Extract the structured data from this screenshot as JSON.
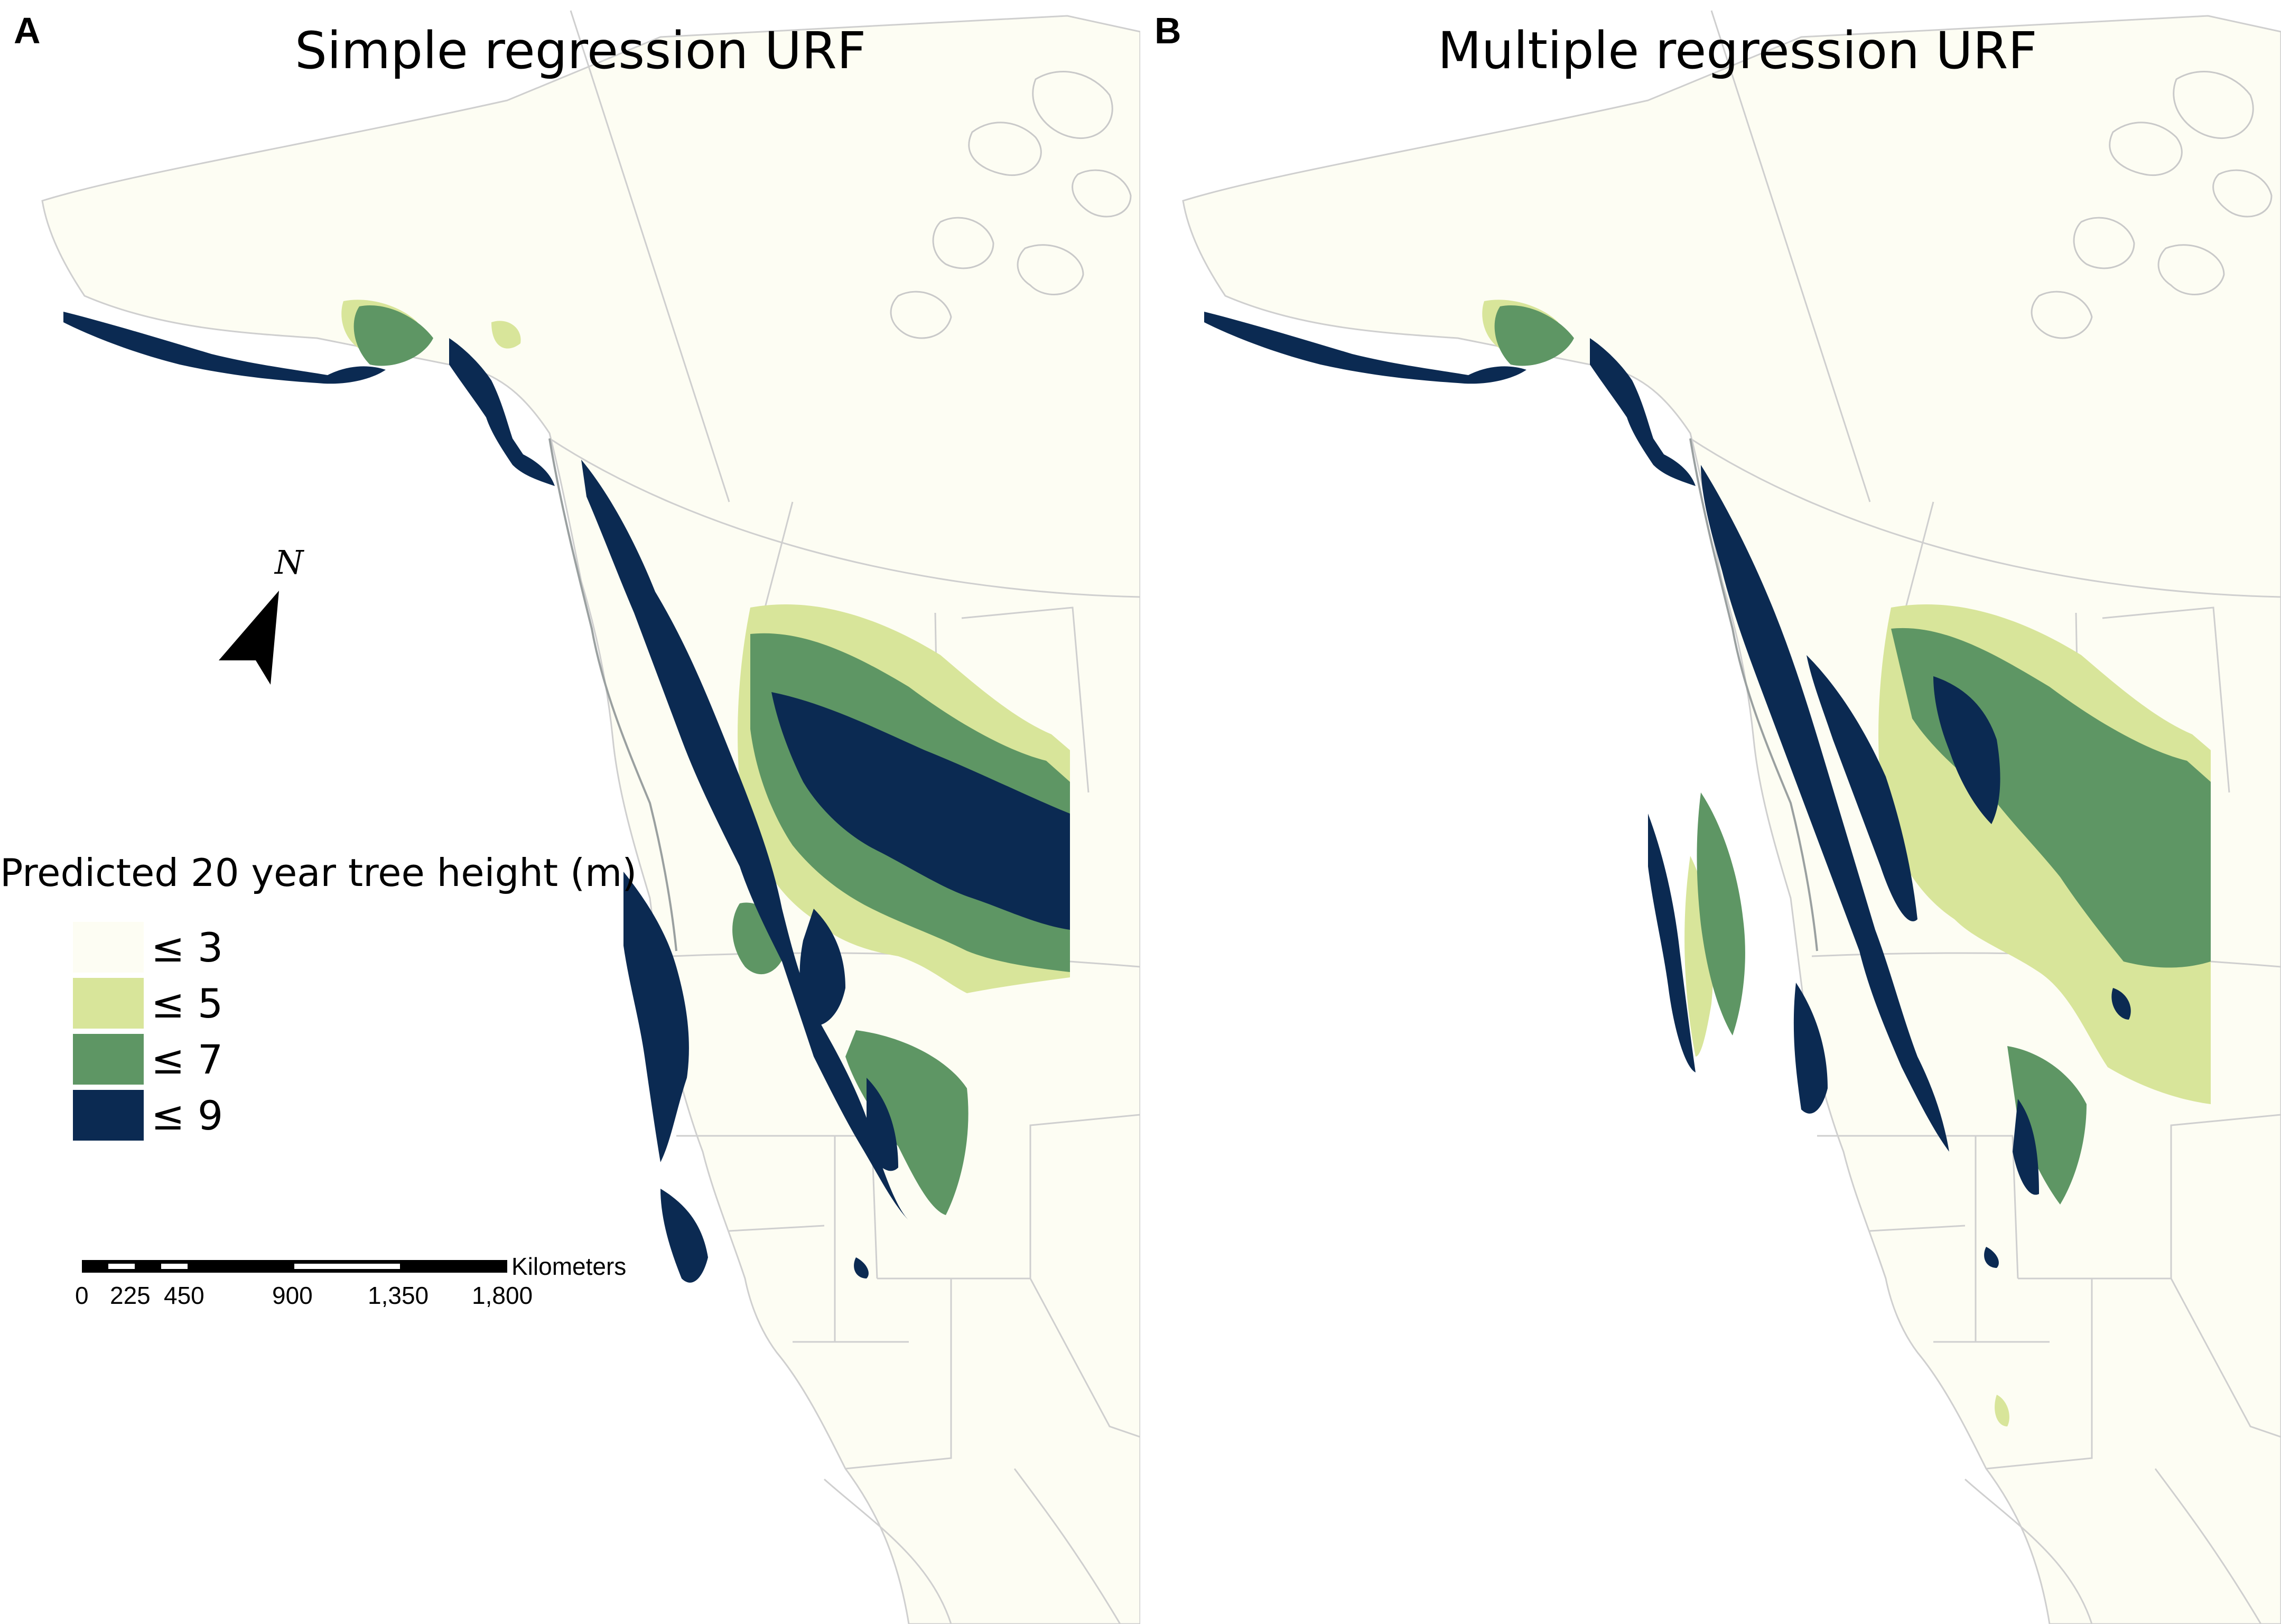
{
  "panels": [
    {
      "letter": "A",
      "title": "Simple regression URF"
    },
    {
      "letter": "B",
      "title": "Multiple regression URF"
    }
  ],
  "legend": {
    "title": "Predicted 20 year tree height (m)",
    "items": [
      {
        "label": "≤ 3",
        "color": "#fdfdf3"
      },
      {
        "label": "≤ 5",
        "color": "#d8e59a"
      },
      {
        "label": "≤ 7",
        "color": "#5e9664"
      },
      {
        "label": "≤ 9",
        "color": "#0b2a52"
      }
    ]
  },
  "north_arrow": {
    "label": "N",
    "icon": "north-arrow-icon"
  },
  "scale_bar": {
    "unit": "Kilometers",
    "ticks": [
      "0",
      "225",
      "450",
      "900",
      "1,350",
      "1,800"
    ]
  },
  "colors": {
    "land": "#fdfdf3",
    "boundary": "#c9c9c9",
    "c5": "#d8e59a",
    "c7": "#5e9664",
    "c9": "#0b2a52"
  }
}
